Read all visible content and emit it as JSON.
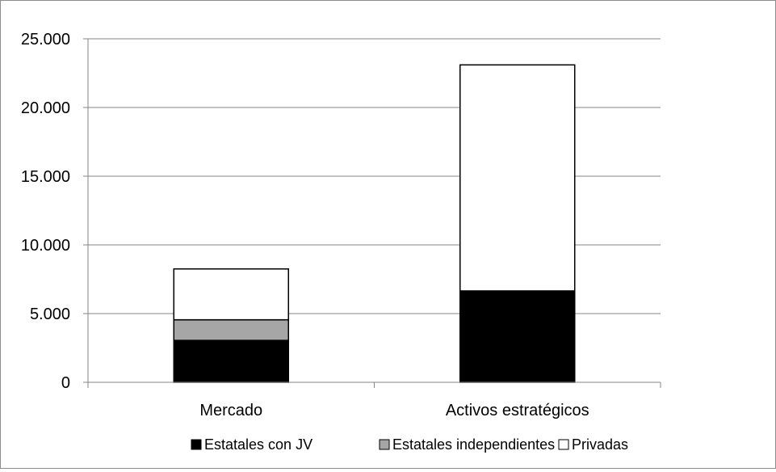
{
  "chart_data": {
    "type": "bar",
    "stacked": true,
    "categories": [
      "Mercado",
      "Activos estratégicos"
    ],
    "series": [
      {
        "name": "Estatales con JV",
        "values": [
          3050,
          6650
        ],
        "color": "#000000"
      },
      {
        "name": "Estatales independientes",
        "values": [
          1500,
          0
        ],
        "color": "#a6a6a6"
      },
      {
        "name": "Privadas",
        "values": [
          3700,
          16450
        ],
        "color": "#ffffff"
      }
    ],
    "ylim": [
      0,
      25000
    ],
    "yticks": [
      0,
      5000,
      10000,
      15000,
      20000,
      25000
    ],
    "ytick_labels": [
      "0",
      "5.000",
      "10.000",
      "15.000",
      "20.000",
      "25.000"
    ],
    "grid": "horizontal",
    "legend_position": "bottom",
    "title": "",
    "xlabel": "",
    "ylabel": ""
  }
}
